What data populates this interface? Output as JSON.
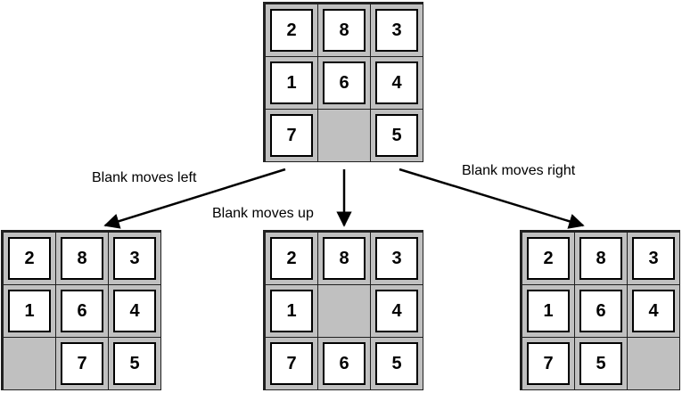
{
  "boards": {
    "root": [
      "2",
      "8",
      "3",
      "1",
      "6",
      "4",
      "7",
      "",
      "5"
    ],
    "left": [
      "2",
      "8",
      "3",
      "1",
      "6",
      "4",
      "",
      "7",
      "5"
    ],
    "up": [
      "2",
      "8",
      "3",
      "1",
      "",
      "4",
      "7",
      "6",
      "5"
    ],
    "right": [
      "2",
      "8",
      "3",
      "1",
      "6",
      "4",
      "7",
      "5",
      ""
    ]
  },
  "labels": {
    "left": "Blank moves left",
    "up": "Blank moves up",
    "right": "Blank moves right"
  },
  "colors": {
    "blank": "#c0c0c0",
    "tile": "#ffffff",
    "border": "#202020"
  }
}
